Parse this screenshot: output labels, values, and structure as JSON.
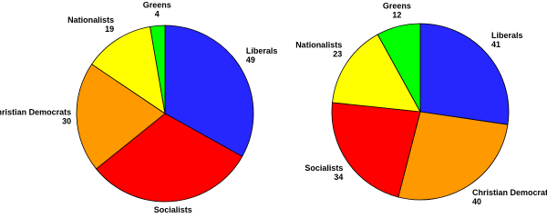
{
  "chart_data": [
    {
      "type": "pie",
      "categories": [
        "Liberals",
        "Socialists",
        "Christian Democrats",
        "Nationalists",
        "Greens"
      ],
      "values": [
        49,
        46,
        30,
        19,
        4
      ],
      "colors": [
        "#2626ff",
        "#ff0000",
        "#ff9900",
        "#ffff00",
        "#00ff00"
      ]
    },
    {
      "type": "pie",
      "categories": [
        "Liberals",
        "Christian Democrats",
        "Socialists",
        "Nationalists",
        "Greens"
      ],
      "values": [
        41,
        40,
        34,
        23,
        12
      ],
      "colors": [
        "#2626ff",
        "#ff9900",
        "#ff0000",
        "#ffff00",
        "#00ff00"
      ]
    }
  ]
}
